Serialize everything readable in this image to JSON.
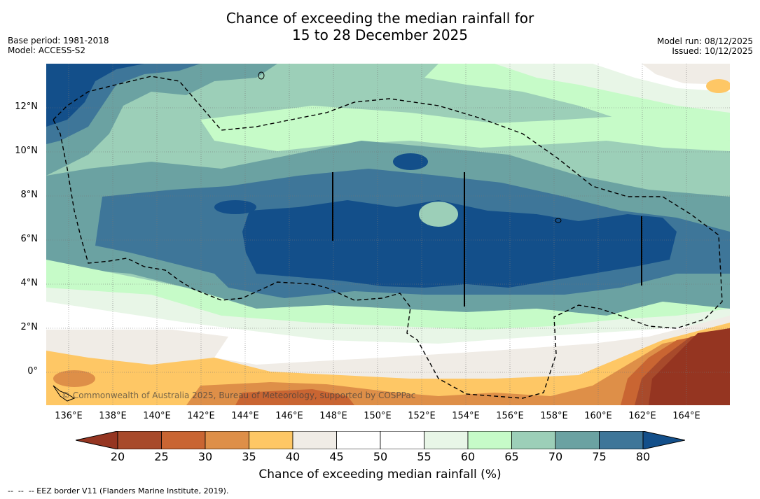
{
  "title_line1": "Chance of exceeding the median rainfall for",
  "title_line2": "15 to 28 December 2025",
  "base_period": "Base period: 1981-2018",
  "model": "Model: ACCESS-S2",
  "model_run": "Model run: 08/12/2025",
  "issued": "Issued: 10/12/2025",
  "lat_labels": [
    "12°N",
    "10°N",
    "8°N",
    "6°N",
    "4°N",
    "2°N",
    "0°"
  ],
  "lon_labels": [
    "136°E",
    "138°E",
    "140°E",
    "142°E",
    "144°E",
    "146°E",
    "148°E",
    "150°E",
    "152°E",
    "154°E",
    "156°E",
    "158°E",
    "160°E",
    "162°E",
    "164°E"
  ],
  "copyright": "© Commonwealth of Australia 2025, Bureau of Meteorology, supported by COSPPac",
  "colorbar": {
    "ticks": [
      "20",
      "25",
      "30",
      "35",
      "40",
      "45",
      "50",
      "55",
      "60",
      "65",
      "70",
      "75",
      "80"
    ],
    "colors": [
      "#a84a2b",
      "#c96532",
      "#de8f48",
      "#fec765",
      "#f0ece6",
      "#ffffff",
      "#ffffff",
      "#e8f6e7",
      "#c6fbc8",
      "#9ccfb8",
      "#6ba2a2",
      "#3e7699"
    ],
    "under_color": "#953521",
    "over_color": "#134f8a",
    "label": "Chance of exceeding median rainfall (%)"
  },
  "footnote": "--  --  -- EEZ border V11 (Flanders Marine Institute, 2019)."
}
